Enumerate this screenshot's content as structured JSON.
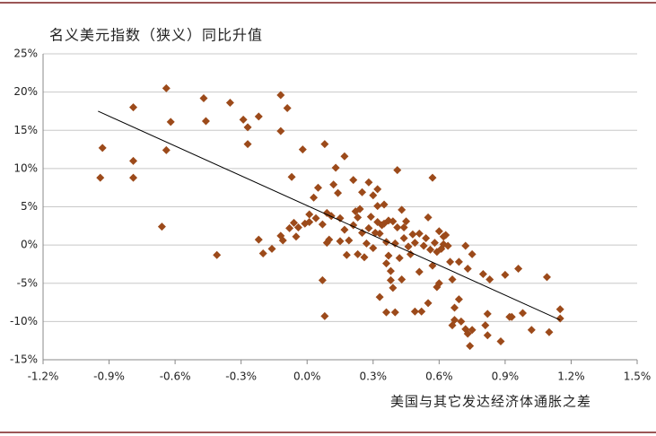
{
  "chart_data": {
    "type": "scatter",
    "title": "名义美元指数（狭义）同比升值",
    "x_label": "美国与其它发达经济体通胀之差",
    "color": "#9c4a1a",
    "grid": true,
    "xlim": [
      -1.2,
      1.5
    ],
    "ylim": [
      -15,
      25
    ],
    "xticks": [
      {
        "value": -1.2,
        "label": "-1.2%"
      },
      {
        "value": -0.9,
        "label": "-0.9%"
      },
      {
        "value": -0.6,
        "label": "-0.6%"
      },
      {
        "value": -0.3,
        "label": "-0.3%"
      },
      {
        "value": 0,
        "label": "0.0%"
      },
      {
        "value": 0.3,
        "label": "0.3%"
      },
      {
        "value": 0.6,
        "label": "0.6%"
      },
      {
        "value": 0.9,
        "label": "0.9%"
      },
      {
        "value": 1.2,
        "label": "1.2%"
      },
      {
        "value": 1.5,
        "label": "1.5%"
      }
    ],
    "yticks": [
      {
        "value": -15,
        "label": "-15%"
      },
      {
        "value": -10,
        "label": "-10%"
      },
      {
        "value": -5,
        "label": "-5%"
      },
      {
        "value": 0,
        "label": "0%"
      },
      {
        "value": 5,
        "label": "5%"
      },
      {
        "value": 10,
        "label": "10%"
      },
      {
        "value": 15,
        "label": "15%"
      },
      {
        "value": 20,
        "label": "20%"
      },
      {
        "value": 25,
        "label": "25%"
      }
    ],
    "x": [
      -0.94,
      -0.93,
      -0.79,
      -0.79,
      -0.79,
      -0.66,
      -0.64,
      -0.64,
      -0.62,
      -0.47,
      -0.46,
      -0.41,
      -0.35,
      -0.29,
      -0.27,
      -0.27,
      -0.22,
      -0.22,
      -0.2,
      -0.16,
      -0.12,
      -0.12,
      -0.12,
      -0.11,
      -0.09,
      -0.08,
      -0.07,
      -0.06,
      -0.05,
      -0.04,
      -0.02,
      -0.01,
      0.01,
      0.01,
      0.03,
      0.04,
      0.05,
      0.07,
      0.07,
      0.08,
      0.08,
      0.09,
      0.09,
      0.1,
      0.11,
      0.12,
      0.13,
      0.14,
      0.15,
      0.15,
      0.17,
      0.17,
      0.18,
      0.19,
      0.21,
      0.21,
      0.22,
      0.23,
      0.23,
      0.24,
      0.25,
      0.25,
      0.26,
      0.27,
      0.28,
      0.28,
      0.29,
      0.3,
      0.3,
      0.31,
      0.32,
      0.32,
      0.32,
      0.33,
      0.33,
      0.34,
      0.35,
      0.35,
      0.36,
      0.36,
      0.36,
      0.37,
      0.37,
      0.38,
      0.38,
      0.39,
      0.39,
      0.4,
      0.4,
      0.41,
      0.41,
      0.42,
      0.43,
      0.43,
      0.44,
      0.44,
      0.45,
      0.46,
      0.47,
      0.48,
      0.49,
      0.49,
      0.51,
      0.51,
      0.52,
      0.53,
      0.54,
      0.55,
      0.55,
      0.56,
      0.57,
      0.57,
      0.58,
      0.59,
      0.59,
      0.6,
      0.6,
      0.61,
      0.62,
      0.62,
      0.63,
      0.64,
      0.65,
      0.66,
      0.66,
      0.67,
      0.67,
      0.69,
      0.69,
      0.7,
      0.72,
      0.72,
      0.73,
      0.73,
      0.74,
      0.75,
      0.75,
      0.8,
      0.81,
      0.82,
      0.82,
      0.83,
      0.88,
      0.9,
      0.92,
      0.93,
      0.96,
      0.98,
      1.02,
      1.09,
      1.1,
      1.15,
      1.15
    ],
    "values": [
      8.8,
      12.7,
      18,
      11,
      8.8,
      2.4,
      20.5,
      12.4,
      16.1,
      19.2,
      16.2,
      -1.3,
      18.6,
      16.4,
      15.4,
      13.2,
      16.8,
      0.7,
      -1.1,
      -0.5,
      19.6,
      14.9,
      1.2,
      0.6,
      17.9,
      2.2,
      8.9,
      2.9,
      1.1,
      2.3,
      12.5,
      2.8,
      4,
      3,
      6.2,
      3.5,
      7.5,
      -4.6,
      2.7,
      13.2,
      -9.3,
      0.3,
      4.2,
      0.7,
      3.8,
      7.9,
      10.1,
      6.8,
      3.5,
      0.5,
      11.6,
      2,
      -1.3,
      0.6,
      2.6,
      8.5,
      4.4,
      3.6,
      -1.2,
      4.7,
      1.6,
      6.9,
      -1.6,
      0.2,
      2.2,
      8.2,
      3.7,
      6.5,
      -0.4,
      1.6,
      7.3,
      5.1,
      3,
      -6.8,
      1.5,
      2.6,
      2.8,
      5.3,
      -2.4,
      0.4,
      -8.8,
      -1.4,
      3.2,
      -4.6,
      -3.4,
      3.1,
      -5.6,
      0.2,
      -8.8,
      9.8,
      2.3,
      -1.7,
      4.6,
      -4.5,
      2.3,
      0.9,
      3.1,
      -0.2,
      -1.2,
      1.4,
      0.3,
      -8.7,
      1.5,
      -3.5,
      -8.7,
      -0.1,
      0.9,
      -7.6,
      3.6,
      -0.6,
      -2.7,
      8.8,
      0.3,
      -5.5,
      -0.9,
      1.8,
      -5,
      -0.5,
      1.1,
      0.1,
      1.3,
      -0.1,
      -2.2,
      -10.5,
      -4.5,
      -8.2,
      -9.8,
      -7.1,
      -2.2,
      -10,
      -11,
      -0.1,
      -11.6,
      -3.1,
      -13.2,
      -1.2,
      -11.1,
      -3.8,
      -10.5,
      -11.8,
      -9,
      -4.5,
      -12.6,
      -3.9,
      -9.4,
      -9.4,
      -3.1,
      -8.9,
      -11.1,
      -4.2,
      -11.4,
      -8.4,
      -9.6
    ],
    "trendline": {
      "x": [
        -0.95,
        1.15
      ],
      "values": [
        17.5,
        -9.8
      ]
    }
  }
}
